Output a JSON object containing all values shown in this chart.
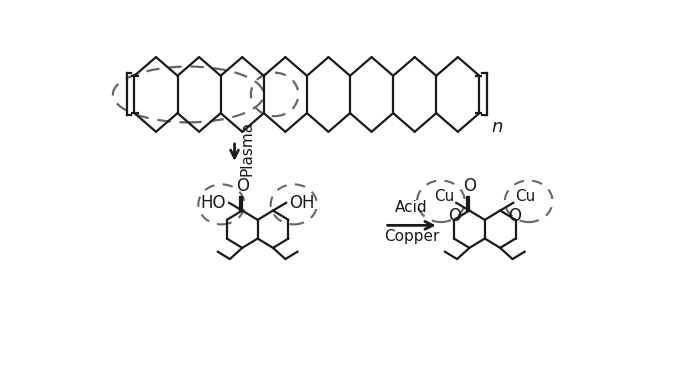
{
  "bg_color": "#ffffff",
  "line_color": "#1a1a1a",
  "dashed_color": "#666666",
  "text_color": "#1a1a1a",
  "figsize": [
    6.92,
    3.7
  ],
  "dpi": 100,
  "plasma_label": "Plasma",
  "acid_label": "Acid",
  "copper_label": "Copper",
  "n_label": "n",
  "O_label": "O",
  "HO_label": "HO",
  "OH_label": "OH",
  "Cu_label": "Cu",
  "O_small": "O"
}
